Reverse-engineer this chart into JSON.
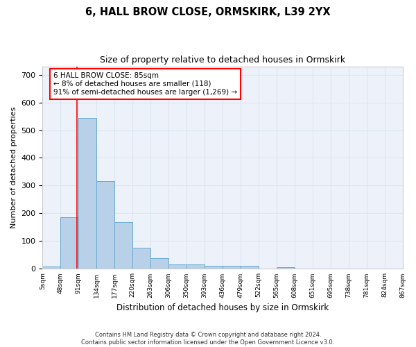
{
  "title1": "6, HALL BROW CLOSE, ORMSKIRK, L39 2YX",
  "title2": "Size of property relative to detached houses in Ormskirk",
  "xlabel": "Distribution of detached houses by size in Ormskirk",
  "ylabel": "Number of detached properties",
  "bar_values": [
    8,
    185,
    545,
    315,
    168,
    76,
    38,
    15,
    15,
    10,
    10,
    10,
    0,
    5,
    0,
    0,
    0,
    0,
    0,
    0
  ],
  "bar_color": "#b8d0e8",
  "bar_edge_color": "#6aabd2",
  "x_labels": [
    "5sqm",
    "48sqm",
    "91sqm",
    "134sqm",
    "177sqm",
    "220sqm",
    "263sqm",
    "306sqm",
    "350sqm",
    "393sqm",
    "436sqm",
    "479sqm",
    "522sqm",
    "565sqm",
    "608sqm",
    "651sqm",
    "695sqm",
    "738sqm",
    "781sqm",
    "824sqm",
    "867sqm"
  ],
  "ylim": [
    0,
    730
  ],
  "yticks": [
    0,
    100,
    200,
    300,
    400,
    500,
    600,
    700
  ],
  "red_line_x": 1.42,
  "annotation_text": "6 HALL BROW CLOSE: 85sqm\n← 8% of detached houses are smaller (118)\n91% of semi-detached houses are larger (1,269) →",
  "footer": "Contains HM Land Registry data © Crown copyright and database right 2024.\nContains public sector information licensed under the Open Government Licence v3.0.",
  "grid_color": "#dce6f0",
  "background_color": "#edf2fa"
}
